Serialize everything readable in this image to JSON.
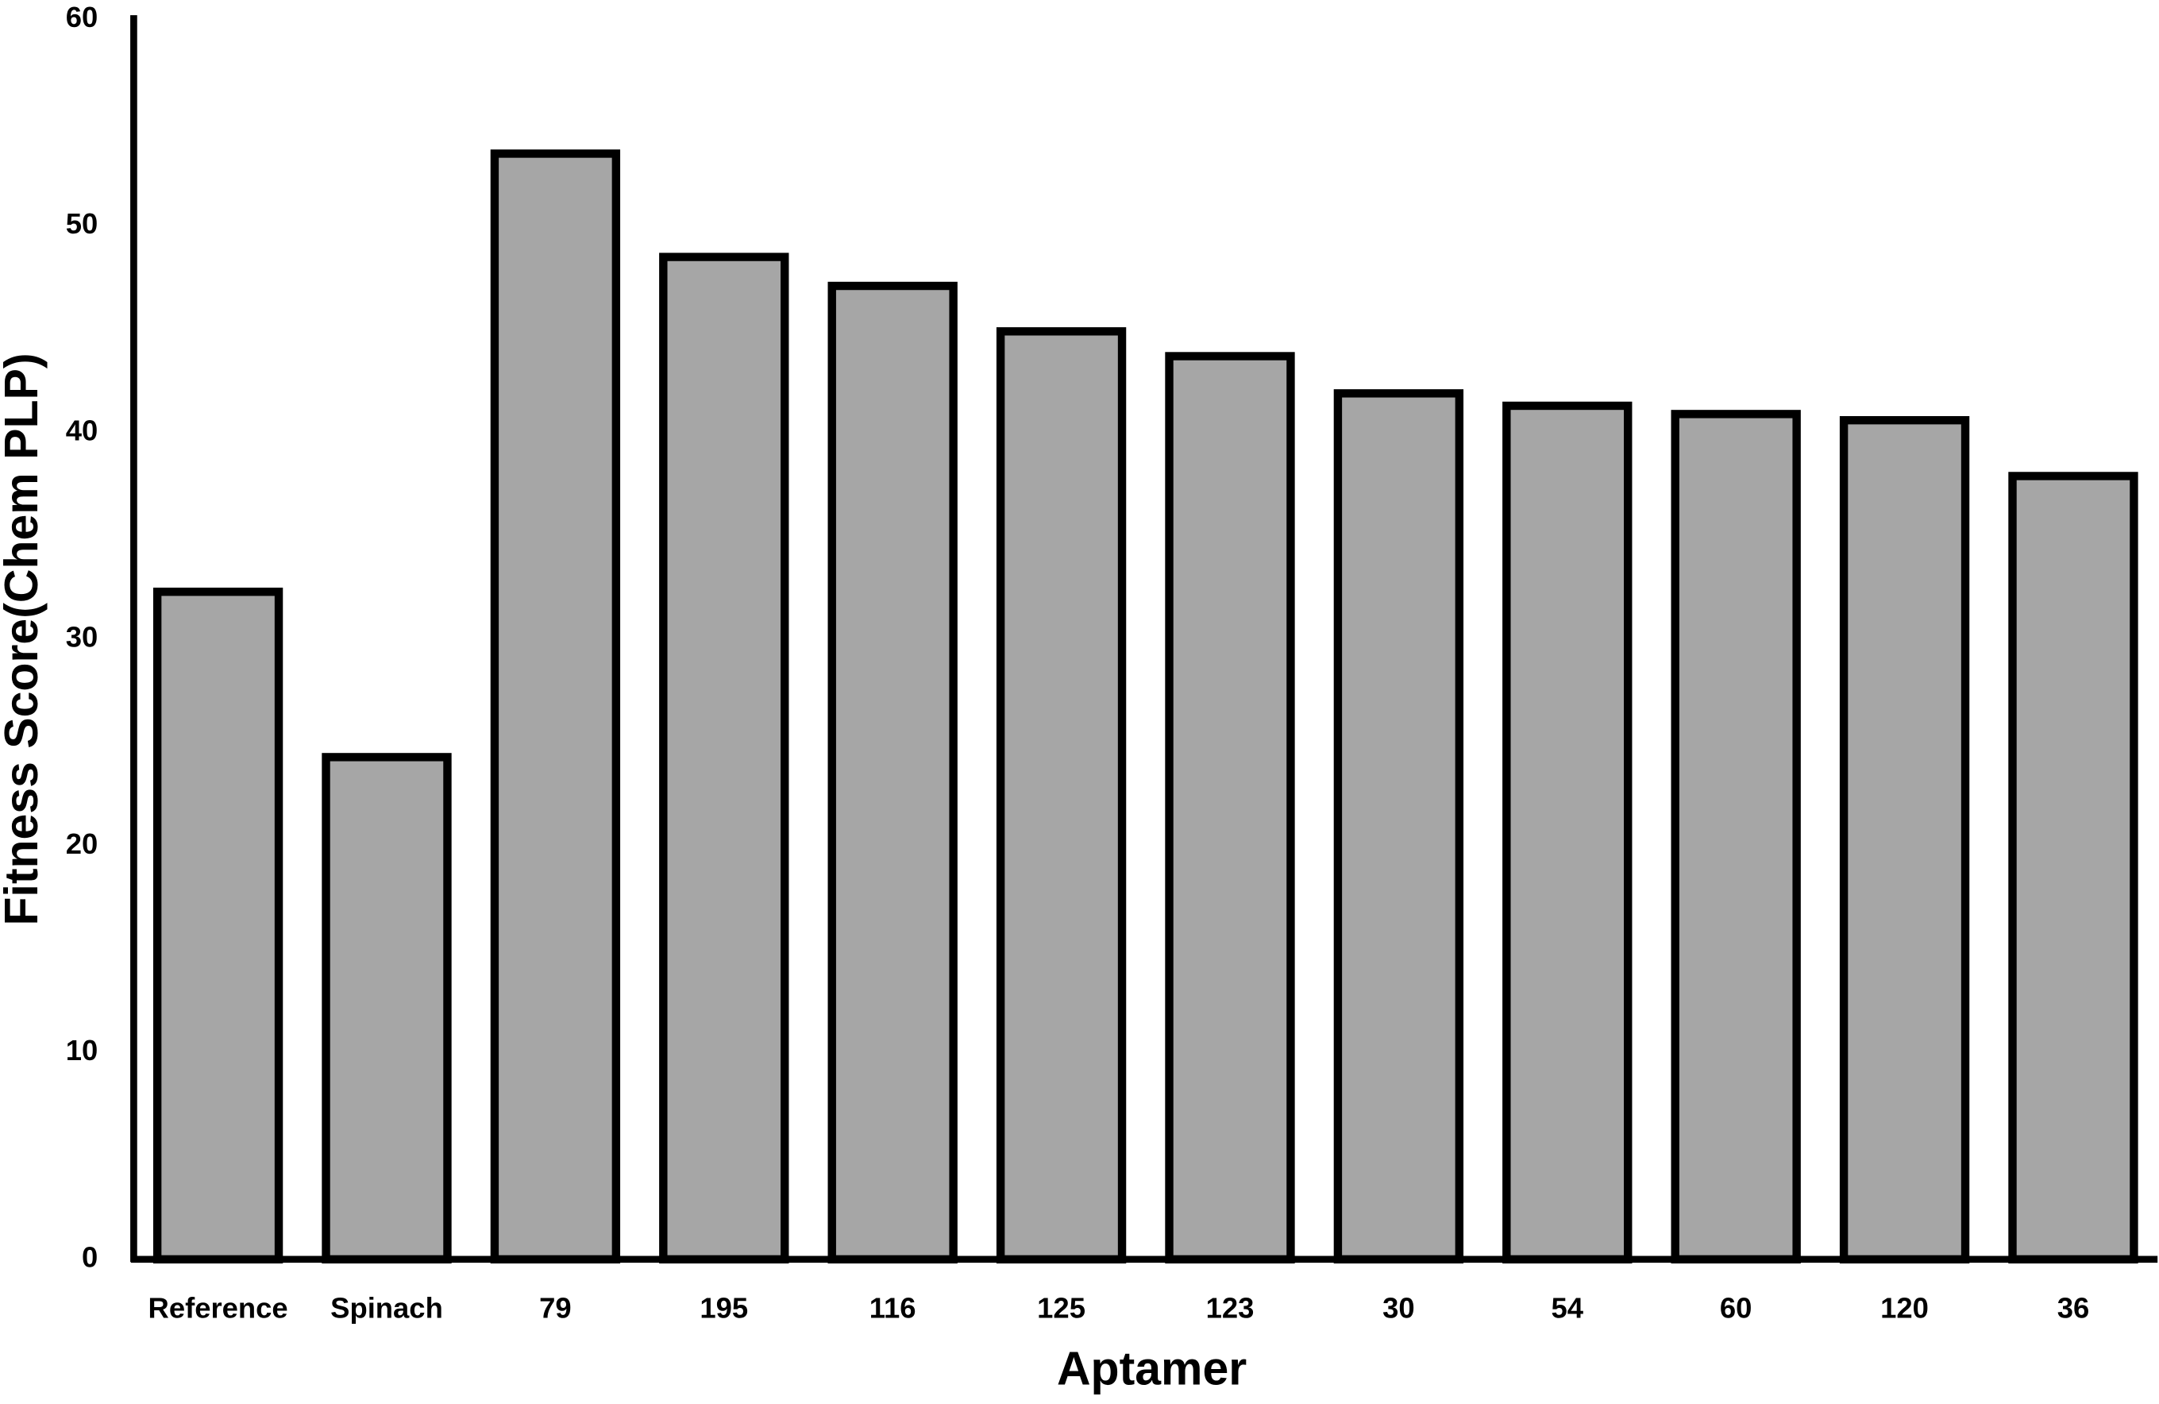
{
  "chart_data": {
    "type": "bar",
    "x_label": "Aptamer",
    "y_label": "Fitness Score(Chem PLP)",
    "categories": [
      "Reference",
      "Spinach",
      "79",
      "195",
      "116",
      "125",
      "123",
      "30",
      "54",
      "60",
      "120",
      "36"
    ],
    "values": [
      32.3,
      24.3,
      53.5,
      48.5,
      47.1,
      44.9,
      43.7,
      41.9,
      41.3,
      40.9,
      40.6,
      37.9
    ],
    "color": "#a6a6a6",
    "edge_color": "#000000",
    "ylim": [
      0,
      60
    ],
    "yticks": [
      0,
      10,
      20,
      30,
      40,
      50,
      60
    ],
    "grid": false
  }
}
